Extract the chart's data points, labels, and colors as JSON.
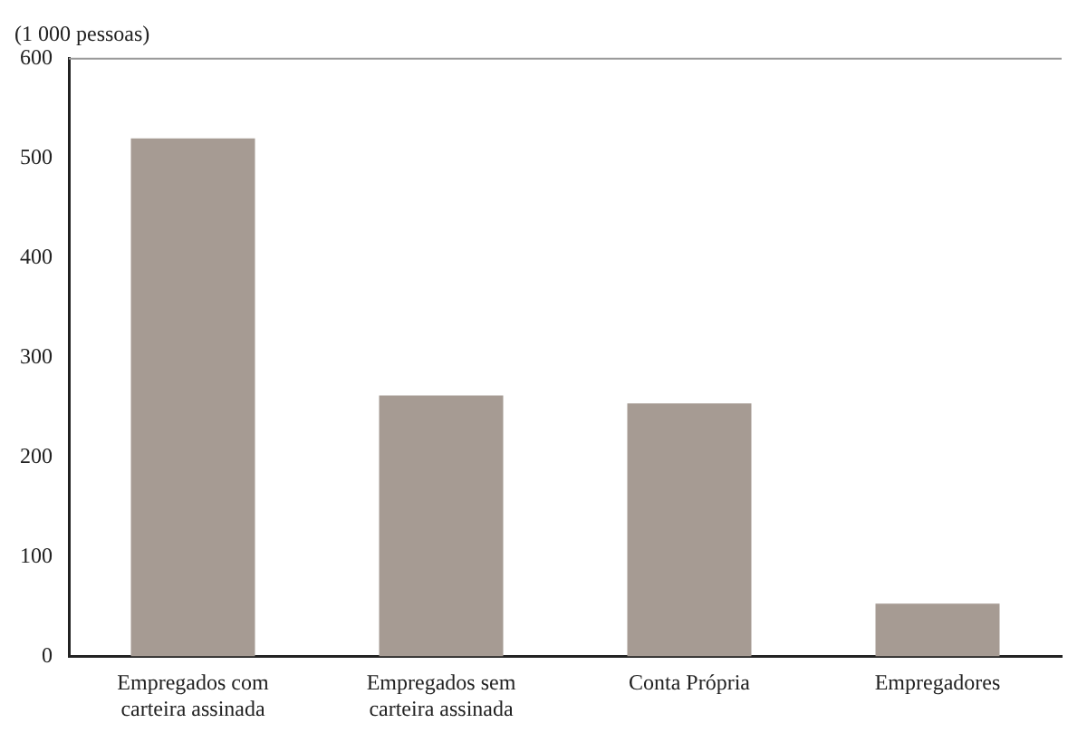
{
  "chart_data": {
    "type": "bar",
    "ylabel": "(1 000 pessoas)",
    "categories": [
      "Empregados com carteira assinada",
      "Empregados sem carteira assinada",
      "Conta Própria",
      "Empregadores"
    ],
    "values": [
      520,
      262,
      254,
      53
    ],
    "color": "#a69b93",
    "ylim": [
      0,
      600
    ],
    "yticks": [
      0,
      100,
      200,
      300,
      400,
      500,
      600
    ]
  }
}
